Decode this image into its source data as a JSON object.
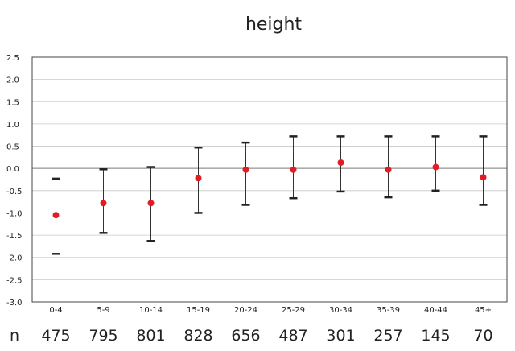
{
  "chart_data": {
    "type": "scatter",
    "title": "height",
    "xlabel": "",
    "ylabel": "",
    "ylim": [
      -3.0,
      2.5
    ],
    "yticks": [
      2.5,
      2.0,
      1.5,
      1.0,
      0.5,
      0.0,
      -0.5,
      -1.0,
      -1.5,
      -2.0,
      -2.5,
      -3.0
    ],
    "ytick_labels": [
      "2.5",
      "2.0",
      "1.5",
      "1.0",
      "0.5",
      "0.0",
      "-0.5",
      "-1.0",
      "-1.5",
      "-2.0",
      "-2.5",
      "-3.0"
    ],
    "grid": true,
    "categories": [
      "0-4",
      "5-9",
      "10-14",
      "15-19",
      "20-24",
      "25-29",
      "30-34",
      "35-39",
      "40-44",
      "45+"
    ],
    "series": [
      {
        "values": [
          -1.05,
          -0.78,
          -0.78,
          -0.22,
          -0.03,
          -0.03,
          0.13,
          -0.03,
          0.03,
          -0.2
        ],
        "upper": [
          -0.23,
          -0.02,
          0.03,
          0.47,
          0.58,
          0.72,
          0.72,
          0.72,
          0.72,
          0.72
        ],
        "lower": [
          -1.92,
          -1.45,
          -1.63,
          -1.0,
          -0.82,
          -0.67,
          -0.52,
          -0.65,
          -0.5,
          -0.82
        ],
        "color": "#e31b23"
      }
    ],
    "count_label": "n",
    "counts": [
      "475",
      "795",
      "801",
      "828",
      "656",
      "487",
      "301",
      "257",
      "145",
      "70"
    ]
  }
}
